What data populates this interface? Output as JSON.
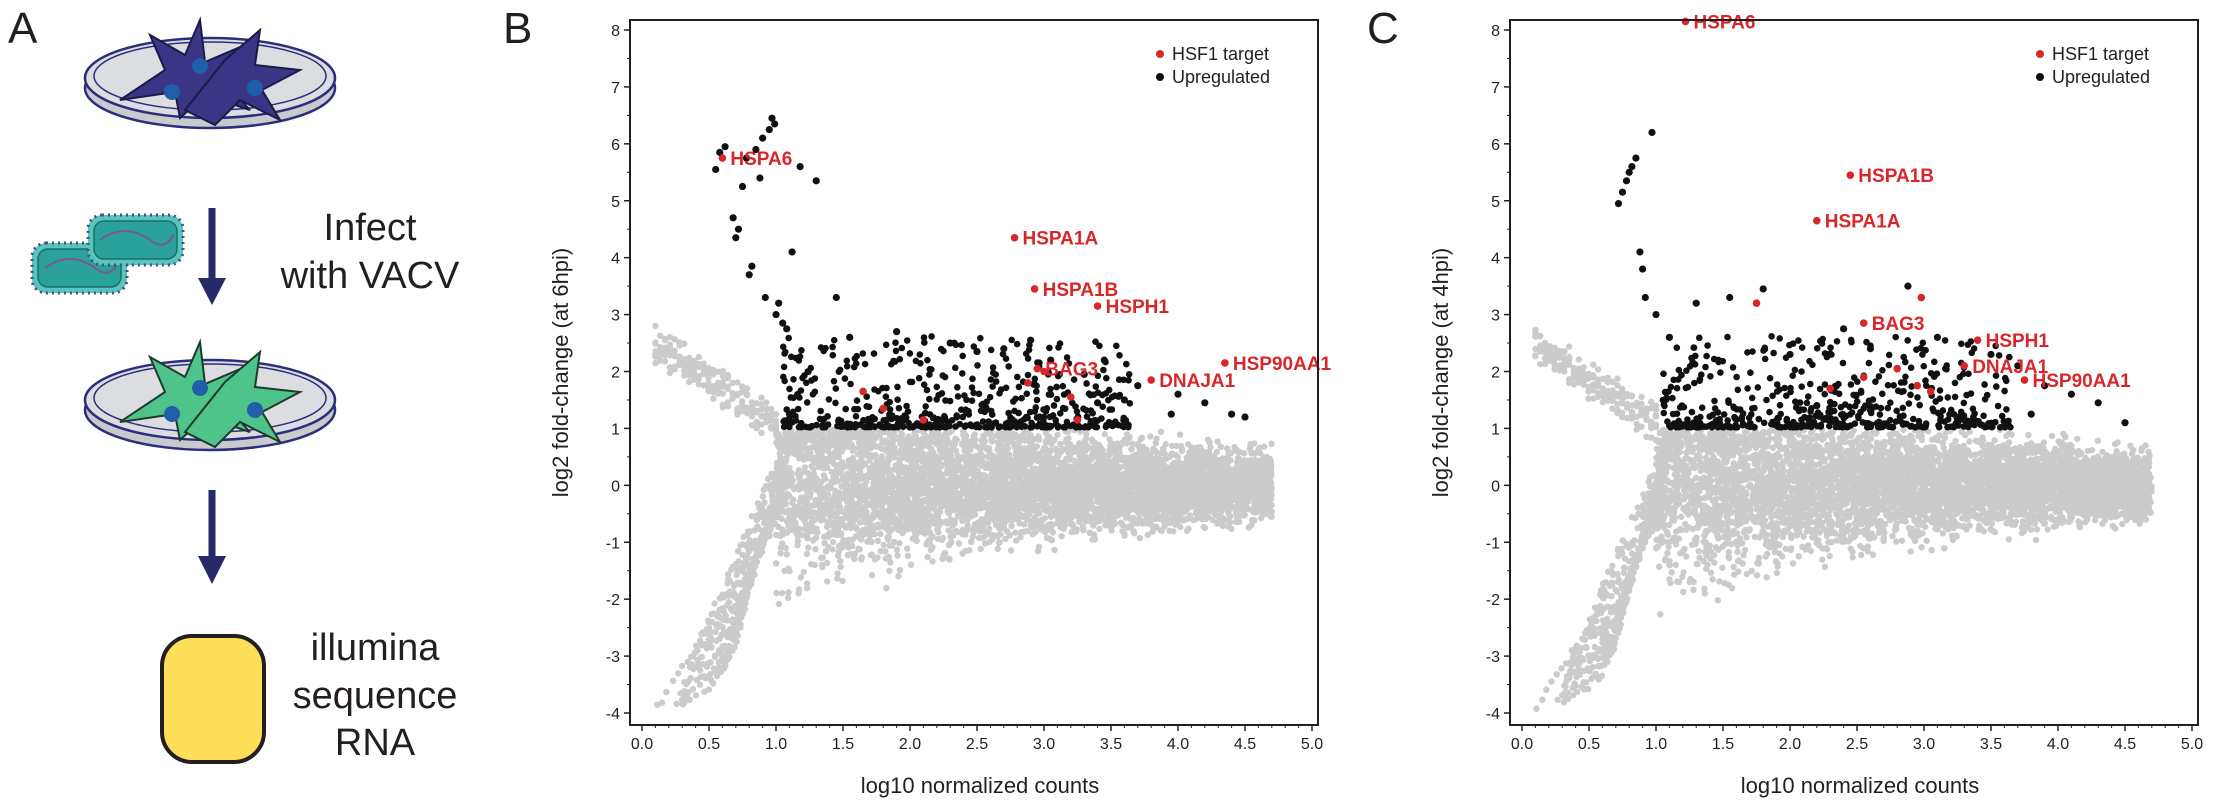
{
  "panels": {
    "a": "A",
    "b": "B",
    "c": "C"
  },
  "workflow": {
    "step1_text": "Infect",
    "step1_text_2": "with VACV",
    "step2_text": "illumina",
    "step2_text_2": "sequence",
    "step2_text_3": "RNA",
    "colors": {
      "dish_fill": "#dcdde0",
      "dish_rim": "#2b2e7a",
      "cell_uninfected": "#3b3585",
      "cell_infected": "#4fc48a",
      "nucleus": "#1f5fa8",
      "arrow": "#262a67",
      "virus_shell": "#57c6c0",
      "virus_core": "#2aa29b",
      "sequencer": "#ffde59",
      "outline": "#231f20"
    }
  },
  "colors": {
    "hsf1": "#d7272b",
    "upregulated": "#111111",
    "background_points": "#cbcbcb",
    "axis": "#231f20"
  },
  "chart_data": [
    {
      "type": "scatter",
      "panel": "B",
      "xlabel": "log10 normalized counts",
      "ylabel": "log2 fold-change (at 6hpi)",
      "xlim": [
        0,
        5
      ],
      "ylim": [
        -4,
        8
      ],
      "xticks": [
        "0.0",
        "0.5",
        "1.0",
        "1.5",
        "2.0",
        "2.5",
        "3.0",
        "3.5",
        "4.0",
        "4.5",
        "5.0"
      ],
      "yticks": [
        "-4",
        "-3",
        "-2",
        "-1",
        "0",
        "1",
        "2",
        "3",
        "4",
        "5",
        "6",
        "7",
        "8"
      ],
      "grid": false,
      "legend_position": "top-right",
      "legend": [
        "HSF1 target",
        "Upregulated"
      ],
      "series": [
        {
          "name": "HSF1 target",
          "points": [
            {
              "x": 0.6,
              "y": 5.75,
              "label": "HSPA6"
            },
            {
              "x": 2.78,
              "y": 4.35,
              "label": "HSPA1A"
            },
            {
              "x": 2.93,
              "y": 3.45,
              "label": "HSPA1B"
            },
            {
              "x": 3.4,
              "y": 3.15,
              "label": "HSPH1"
            },
            {
              "x": 4.35,
              "y": 2.15,
              "label": "HSP90AA1"
            },
            {
              "x": 2.95,
              "y": 2.05,
              "label": "BAG3"
            },
            {
              "x": 3.8,
              "y": 1.85,
              "label": "DNAJA1"
            },
            {
              "x": 1.65,
              "y": 1.65
            },
            {
              "x": 2.88,
              "y": 1.8
            },
            {
              "x": 3.0,
              "y": 2.0
            },
            {
              "x": 3.2,
              "y": 1.55
            },
            {
              "x": 3.25,
              "y": 1.15
            },
            {
              "x": 2.1,
              "y": 1.15
            },
            {
              "x": 1.8,
              "y": 1.35
            }
          ]
        },
        {
          "name": "Upregulated",
          "points": [
            {
              "x": 0.55,
              "y": 5.55
            },
            {
              "x": 0.58,
              "y": 5.85
            },
            {
              "x": 0.62,
              "y": 5.95
            },
            {
              "x": 0.68,
              "y": 4.7
            },
            {
              "x": 0.7,
              "y": 4.35
            },
            {
              "x": 0.72,
              "y": 4.5
            },
            {
              "x": 0.75,
              "y": 5.25
            },
            {
              "x": 0.78,
              "y": 5.75
            },
            {
              "x": 0.8,
              "y": 3.7
            },
            {
              "x": 0.82,
              "y": 3.85
            },
            {
              "x": 0.85,
              "y": 5.9
            },
            {
              "x": 0.88,
              "y": 5.4
            },
            {
              "x": 0.9,
              "y": 6.1
            },
            {
              "x": 0.92,
              "y": 3.3
            },
            {
              "x": 0.95,
              "y": 6.25
            },
            {
              "x": 0.97,
              "y": 6.45
            },
            {
              "x": 0.99,
              "y": 6.35
            },
            {
              "x": 1.0,
              "y": 3.0
            },
            {
              "x": 1.02,
              "y": 3.2
            },
            {
              "x": 1.05,
              "y": 2.85
            },
            {
              "x": 1.08,
              "y": 2.75
            },
            {
              "x": 1.12,
              "y": 4.1
            },
            {
              "x": 1.18,
              "y": 5.6
            },
            {
              "x": 1.3,
              "y": 5.35
            },
            {
              "x": 1.45,
              "y": 3.3
            },
            {
              "x": 1.55,
              "y": 2.6
            },
            {
              "x": 1.9,
              "y": 2.7
            },
            {
              "x": 2.3,
              "y": 2.5
            },
            {
              "x": 2.5,
              "y": 2.35
            },
            {
              "x": 2.7,
              "y": 2.4
            },
            {
              "x": 3.05,
              "y": 2.2
            },
            {
              "x": 3.3,
              "y": 1.95
            },
            {
              "x": 3.45,
              "y": 2.2
            },
            {
              "x": 3.7,
              "y": 1.75
            },
            {
              "x": 4.0,
              "y": 1.6
            },
            {
              "x": 4.2,
              "y": 1.45
            },
            {
              "x": 4.4,
              "y": 1.25
            },
            {
              "x": 4.5,
              "y": 1.2
            },
            {
              "x": 3.95,
              "y": 1.25
            },
            {
              "x": 3.6,
              "y": 1.5
            },
            {
              "x": 3.4,
              "y": 1.45
            },
            {
              "x": 2.9,
              "y": 2.55
            }
          ]
        }
      ]
    },
    {
      "type": "scatter",
      "panel": "C",
      "xlabel": "log10 normalized counts",
      "ylabel": "log2 fold-change (at 4hpi)",
      "xlim": [
        0,
        5
      ],
      "ylim": [
        -4,
        8
      ],
      "xticks": [
        "0.0",
        "0.5",
        "1.0",
        "1.5",
        "2.0",
        "2.5",
        "3.0",
        "3.5",
        "4.0",
        "4.5",
        "5.0"
      ],
      "yticks": [
        "-4",
        "-3",
        "-2",
        "-1",
        "0",
        "1",
        "2",
        "3",
        "4",
        "5",
        "6",
        "7",
        "8"
      ],
      "grid": false,
      "legend_position": "top-right",
      "legend": [
        "HSF1 target",
        "Upregulated"
      ],
      "series": [
        {
          "name": "HSF1 target",
          "points": [
            {
              "x": 1.22,
              "y": 8.15,
              "label": "HSPA6"
            },
            {
              "x": 2.45,
              "y": 5.45,
              "label": "HSPA1B"
            },
            {
              "x": 2.2,
              "y": 4.65,
              "label": "HSPA1A"
            },
            {
              "x": 2.55,
              "y": 2.85,
              "label": "BAG3"
            },
            {
              "x": 3.4,
              "y": 2.55,
              "label": "HSPH1"
            },
            {
              "x": 3.3,
              "y": 2.1,
              "label": "DNAJA1"
            },
            {
              "x": 3.75,
              "y": 1.85,
              "label": "HSP90AA1"
            },
            {
              "x": 1.75,
              "y": 3.2
            },
            {
              "x": 2.3,
              "y": 1.7
            },
            {
              "x": 2.8,
              "y": 2.05
            },
            {
              "x": 2.95,
              "y": 1.75
            },
            {
              "x": 3.05,
              "y": 1.65
            },
            {
              "x": 2.98,
              "y": 3.3
            },
            {
              "x": 2.55,
              "y": 1.9
            }
          ]
        },
        {
          "name": "Upregulated",
          "points": [
            {
              "x": 0.75,
              "y": 5.15
            },
            {
              "x": 0.72,
              "y": 4.95
            },
            {
              "x": 0.78,
              "y": 5.35
            },
            {
              "x": 0.8,
              "y": 5.5
            },
            {
              "x": 0.82,
              "y": 5.6
            },
            {
              "x": 0.85,
              "y": 5.75
            },
            {
              "x": 0.88,
              "y": 4.1
            },
            {
              "x": 0.9,
              "y": 3.8
            },
            {
              "x": 0.92,
              "y": 3.3
            },
            {
              "x": 0.97,
              "y": 6.2
            },
            {
              "x": 1.0,
              "y": 3.0
            },
            {
              "x": 1.1,
              "y": 2.6
            },
            {
              "x": 1.3,
              "y": 3.2
            },
            {
              "x": 1.55,
              "y": 3.3
            },
            {
              "x": 1.8,
              "y": 3.45
            },
            {
              "x": 2.4,
              "y": 2.75
            },
            {
              "x": 2.6,
              "y": 2.4
            },
            {
              "x": 2.88,
              "y": 3.5
            },
            {
              "x": 3.1,
              "y": 2.6
            },
            {
              "x": 3.5,
              "y": 2.3
            },
            {
              "x": 3.7,
              "y": 2.1
            },
            {
              "x": 3.9,
              "y": 1.75
            },
            {
              "x": 4.1,
              "y": 1.6
            },
            {
              "x": 4.3,
              "y": 1.45
            },
            {
              "x": 4.5,
              "y": 1.1
            },
            {
              "x": 3.8,
              "y": 1.25
            },
            {
              "x": 2.0,
              "y": 2.3
            },
            {
              "x": 2.2,
              "y": 1.4
            }
          ]
        }
      ]
    }
  ]
}
